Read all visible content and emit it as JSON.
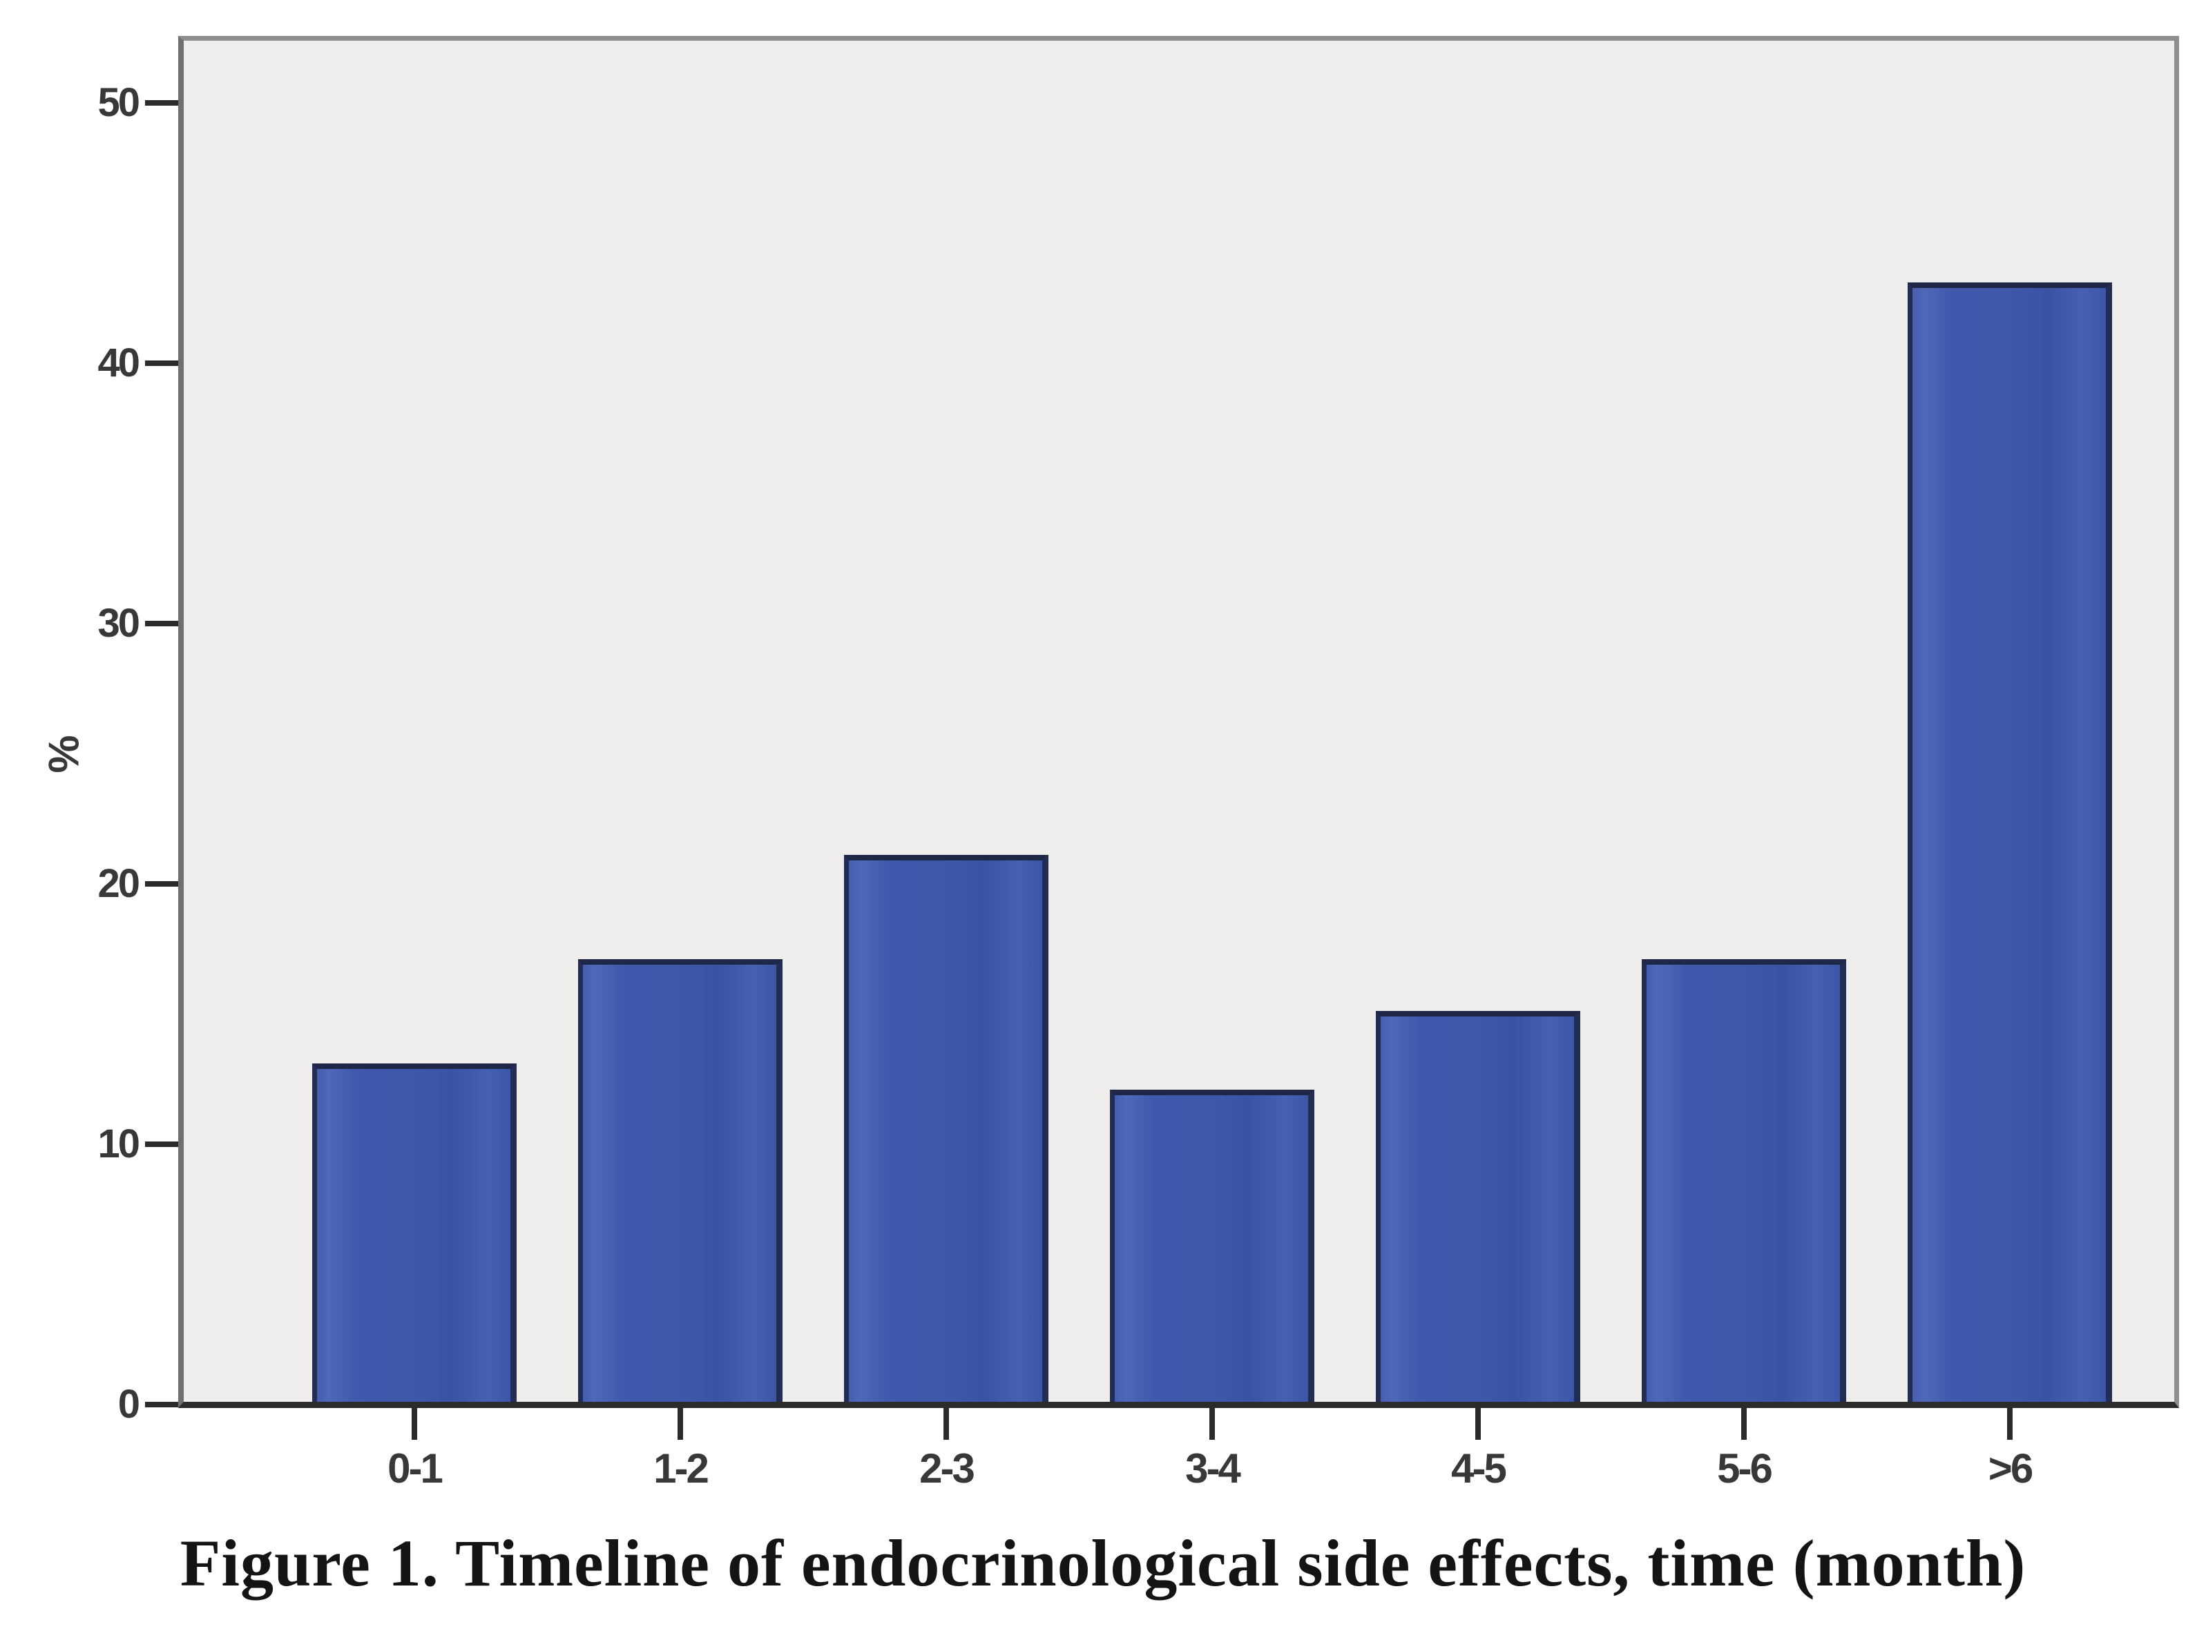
{
  "figure": {
    "caption": "Figure 1. Timeline of endocrinological side effects, time (month)"
  },
  "chart_data": {
    "type": "bar",
    "categories": [
      "0-1",
      "1-2",
      "2-3",
      "3-4",
      "4-5",
      "5-6",
      ">6"
    ],
    "values": [
      13,
      17,
      21,
      12,
      15,
      17,
      43
    ],
    "title": "",
    "xlabel": "",
    "ylabel": "%",
    "ylim": [
      0,
      52.5
    ],
    "yticks": [
      0,
      10,
      20,
      30,
      40,
      50
    ],
    "grid": false,
    "legend": null,
    "bar_color": "#4059AC",
    "bar_border_color": "#1F2747",
    "plot_background": "#EFEEEC",
    "frame_color": "#8F8F8F",
    "axis_color": "#2B2B2B",
    "tick_text_color": "#383838"
  }
}
